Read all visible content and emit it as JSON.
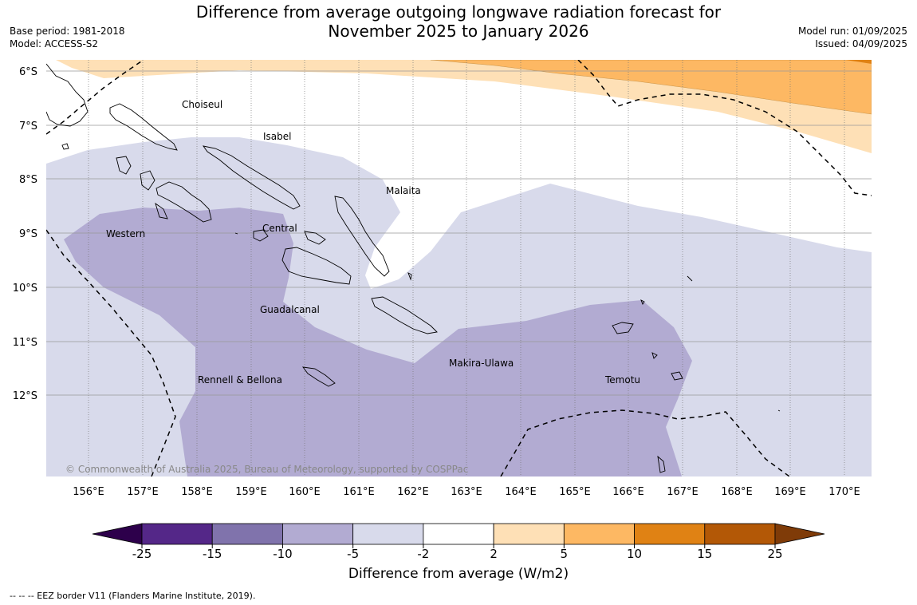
{
  "title_line1": "Difference from average outgoing longwave radiation forecast for",
  "title_line2": "November 2025 to January 2026",
  "meta_left": {
    "base_period": "Base period: 1981-2018",
    "model": "Model: ACCESS-S2"
  },
  "meta_right": {
    "model_run": "Model run: 01/09/2025",
    "issued": "Issued: 04/09/2025"
  },
  "copyright": "© Commonwealth of Australia 2025, Bureau of Meteorology, supported by COSPPac",
  "lat_labels": [
    "6°S",
    "7°S",
    "8°S",
    "9°S",
    "10°S",
    "11°S",
    "12°S"
  ],
  "lon_labels": [
    "156°E",
    "157°E",
    "158°E",
    "159°E",
    "160°E",
    "161°E",
    "162°E",
    "163°E",
    "164°E",
    "165°E",
    "166°E",
    "167°E",
    "168°E",
    "169°E",
    "170°E"
  ],
  "regions": [
    "Choiseul",
    "Isabel",
    "Malaita",
    "Western",
    "Central",
    "Guadalcanal",
    "Rennell & Bellona",
    "Makira-Ulawa",
    "Temotu"
  ],
  "colorbar": {
    "ticks": [
      "-25",
      "-15",
      "-10",
      "-5",
      "-2",
      "2",
      "5",
      "10",
      "15",
      "25"
    ],
    "colors": [
      "#2d004b",
      "#542788",
      "#8073ac",
      "#b2abd2",
      "#d8daeb",
      "#ffffff",
      "#fee0b6",
      "#fdb863",
      "#e08214",
      "#b35806",
      "#7f3b08"
    ],
    "label": "Difference from average (W/m2)"
  },
  "legend_note": "--  --  -- EEZ border V11 (Flanders Marine Institute, 2019)."
}
